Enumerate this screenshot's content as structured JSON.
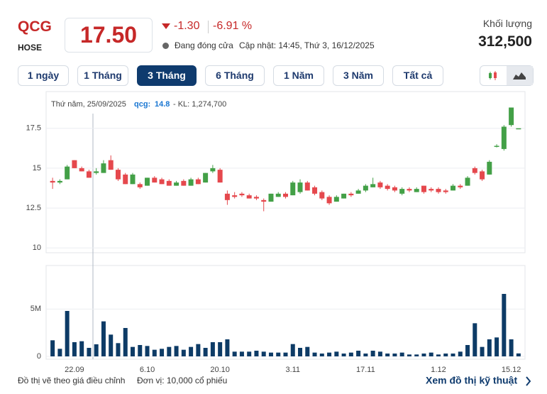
{
  "header": {
    "ticker": "QCG",
    "exchange": "HOSE",
    "price": "17.50",
    "change": "-1.30",
    "change_pct": "-6.91 %",
    "status": "Đang đóng cửa",
    "updated": "Cập nhật: 14:45, Thứ 3, 16/12/2025",
    "volume_label": "Khối lượng",
    "volume": "312,500"
  },
  "tabs": {
    "items": [
      "1 ngày",
      "1 Tháng",
      "3 Tháng",
      "6 Tháng",
      "1 Năm",
      "3 Năm",
      "Tất cả"
    ],
    "active": 2
  },
  "tooltip": {
    "date": "Thứ năm, 25/09/2025",
    "series_label": "qcg:",
    "price": "14.8",
    "volume_label": "- KL: 1,274,700"
  },
  "footer": {
    "note": "Đồ thị vẽ theo giá điều chỉnh",
    "unit": "Đơn vị: 10,000 cổ phiếu",
    "link": "Xem đồ thị kỹ thuật"
  },
  "chart_data": [
    {
      "type": "candlestick",
      "up_color": "#43a047",
      "down_color": "#e5484d",
      "grid": true,
      "categories": [
        null,
        null,
        null,
        "22.09",
        null,
        null,
        null,
        null,
        null,
        null,
        null,
        null,
        null,
        "6.10",
        null,
        null,
        null,
        null,
        null,
        null,
        null,
        null,
        null,
        "20.10",
        null,
        null,
        null,
        null,
        null,
        null,
        null,
        null,
        null,
        "3.11",
        null,
        null,
        null,
        null,
        null,
        null,
        null,
        null,
        null,
        "17.11",
        null,
        null,
        null,
        null,
        null,
        null,
        null,
        null,
        null,
        "1.12",
        null,
        null,
        null,
        null,
        null,
        null,
        null,
        null,
        null,
        "15.12",
        null
      ],
      "open": [
        14.2,
        14.1,
        14.3,
        15.5,
        15.0,
        14.8,
        14.7,
        14.7,
        15.5,
        14.9,
        14.6,
        14.0,
        14.0,
        13.9,
        14.4,
        14.3,
        14.2,
        13.9,
        14.2,
        13.9,
        14.3,
        14.1,
        14.8,
        14.9,
        13.4,
        13.3,
        13.4,
        13.3,
        13.2,
        13.0,
        12.9,
        13.2,
        13.4,
        13.3,
        13.5,
        14.1,
        13.8,
        13.5,
        13.2,
        12.9,
        13.1,
        13.4,
        13.4,
        13.6,
        13.8,
        14.1,
        13.9,
        13.8,
        13.4,
        13.7,
        13.5,
        13.9,
        13.7,
        13.7,
        13.6,
        13.6,
        13.9,
        13.9,
        15.0,
        14.8,
        14.6,
        16.4,
        16.2,
        17.7,
        17.5
      ],
      "high": [
        14.4,
        14.3,
        15.2,
        15.5,
        15.1,
        14.9,
        15.0,
        15.5,
        15.8,
        15.0,
        14.7,
        14.7,
        14.1,
        14.4,
        14.5,
        14.4,
        14.3,
        14.2,
        14.3,
        14.4,
        14.4,
        14.7,
        15.2,
        15.0,
        13.6,
        13.5,
        13.5,
        13.4,
        13.3,
        13.1,
        13.4,
        13.5,
        13.5,
        14.2,
        14.3,
        14.2,
        13.9,
        13.6,
        13.3,
        13.3,
        13.4,
        13.5,
        13.7,
        14.0,
        14.4,
        14.2,
        14.0,
        13.9,
        13.8,
        13.8,
        13.8,
        13.9,
        13.8,
        13.8,
        13.7,
        14.0,
        14.0,
        14.5,
        15.1,
        14.9,
        15.5,
        16.5,
        17.7,
        18.8,
        17.5
      ],
      "low": [
        13.7,
        14.0,
        14.3,
        15.0,
        14.8,
        14.4,
        14.6,
        14.7,
        14.9,
        14.2,
        14.0,
        14.0,
        13.7,
        13.9,
        14.1,
        14.0,
        13.9,
        13.9,
        13.9,
        13.9,
        14.0,
        14.1,
        14.7,
        14.1,
        12.7,
        13.1,
        13.2,
        13.1,
        13.0,
        12.3,
        12.9,
        13.2,
        13.1,
        13.3,
        13.4,
        13.6,
        13.3,
        13.0,
        12.7,
        12.9,
        13.1,
        13.2,
        13.4,
        13.5,
        13.8,
        13.7,
        13.6,
        13.5,
        13.3,
        13.5,
        13.5,
        13.4,
        13.5,
        13.4,
        13.4,
        13.6,
        13.7,
        13.9,
        14.6,
        14.2,
        14.6,
        16.3,
        16.1,
        17.6,
        17.5
      ],
      "close": [
        14.1,
        14.2,
        15.1,
        15.0,
        14.8,
        14.4,
        14.8,
        15.3,
        14.9,
        14.3,
        14.0,
        14.6,
        13.8,
        14.4,
        14.1,
        14.0,
        13.9,
        14.1,
        13.9,
        14.3,
        14.0,
        14.7,
        15.0,
        14.1,
        13.0,
        13.2,
        13.3,
        13.1,
        13.1,
        12.9,
        13.4,
        13.4,
        13.2,
        14.1,
        14.1,
        13.6,
        13.4,
        13.1,
        12.8,
        13.2,
        13.4,
        13.3,
        13.6,
        13.9,
        14.0,
        13.8,
        13.7,
        13.6,
        13.7,
        13.6,
        13.7,
        13.5,
        13.6,
        13.5,
        13.5,
        13.9,
        13.8,
        14.4,
        14.7,
        14.3,
        15.4,
        16.4,
        17.6,
        18.8,
        17.5
      ],
      "ylim": [
        9.7,
        19.8
      ],
      "yticks": [
        10,
        12.5,
        15,
        17.5
      ]
    },
    {
      "type": "bar",
      "color": "#0d3b66",
      "values": [
        1700000,
        800000,
        4800000,
        1500000,
        1600000,
        900000,
        1274700,
        3700000,
        2300000,
        1400000,
        3000000,
        1000000,
        1200000,
        1100000,
        700000,
        800000,
        1000000,
        1100000,
        700000,
        1000000,
        1300000,
        900000,
        1500000,
        1500000,
        1800000,
        500000,
        500000,
        500000,
        600000,
        500000,
        400000,
        400000,
        400000,
        1300000,
        900000,
        1000000,
        400000,
        300000,
        400000,
        500000,
        300000,
        400000,
        600000,
        300000,
        600000,
        500000,
        300000,
        300000,
        400000,
        200000,
        200000,
        300000,
        400000,
        200000,
        300000,
        300000,
        500000,
        1200000,
        3500000,
        1000000,
        1800000,
        2000000,
        6600000,
        1800000,
        312500
      ],
      "ylim": [
        0,
        9600000
      ],
      "yticks": [
        0,
        {
          "value": 5000000,
          "label": "5M"
        }
      ]
    }
  ]
}
